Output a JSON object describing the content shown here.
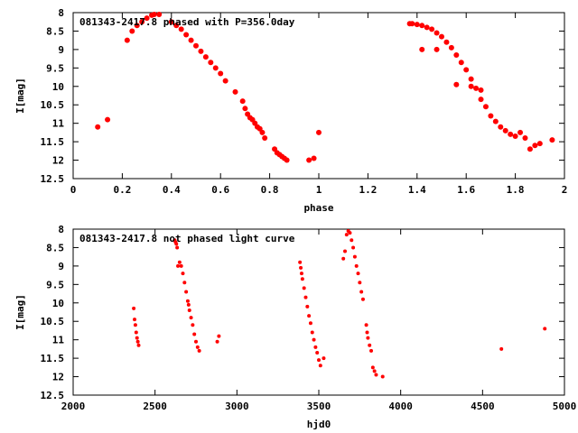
{
  "chart_data": [
    {
      "type": "scatter",
      "title": "081343-2417.8 phased with P=356.0day",
      "xlabel": "phase",
      "ylabel": "I[mag]",
      "xlim": [
        0,
        2
      ],
      "ylim": [
        12.5,
        8
      ],
      "y_inverted": true,
      "xticks": [
        "0",
        "0.2",
        "0.4",
        "0.6",
        "0.8",
        "1",
        "1.2",
        "1.4",
        "1.6",
        "1.8",
        "2"
      ],
      "yticks": [
        "8",
        "8.5",
        "9",
        "9.5",
        "10",
        "10.5",
        "11",
        "11.5",
        "12",
        "12.5"
      ],
      "marker": "filled-circle",
      "color": "#ff0000",
      "grid": false,
      "legend": "none",
      "series": [
        {
          "points": [
            [
              0.1,
              11.1
            ],
            [
              0.14,
              10.9
            ],
            [
              0.22,
              8.75
            ],
            [
              0.24,
              8.5
            ],
            [
              0.26,
              8.35
            ],
            [
              0.28,
              8.25
            ],
            [
              0.3,
              8.15
            ],
            [
              0.32,
              8.07
            ],
            [
              0.33,
              8.05
            ],
            [
              0.35,
              8.05
            ],
            [
              0.4,
              8.25
            ],
            [
              0.42,
              8.35
            ],
            [
              0.44,
              8.45
            ],
            [
              0.46,
              8.6
            ],
            [
              0.48,
              8.75
            ],
            [
              0.5,
              8.9
            ],
            [
              0.52,
              9.05
            ],
            [
              0.54,
              9.2
            ],
            [
              0.56,
              9.35
            ],
            [
              0.58,
              9.5
            ],
            [
              0.6,
              9.65
            ],
            [
              0.62,
              9.85
            ],
            [
              0.66,
              10.15
            ],
            [
              0.69,
              10.4
            ],
            [
              0.7,
              10.6
            ],
            [
              0.71,
              10.75
            ],
            [
              0.72,
              10.85
            ],
            [
              0.73,
              10.9
            ],
            [
              0.74,
              11.0
            ],
            [
              0.75,
              11.1
            ],
            [
              0.76,
              11.15
            ],
            [
              0.77,
              11.25
            ],
            [
              0.78,
              11.4
            ],
            [
              0.82,
              11.7
            ],
            [
              0.83,
              11.8
            ],
            [
              0.84,
              11.85
            ],
            [
              0.85,
              11.9
            ],
            [
              0.86,
              11.95
            ],
            [
              0.87,
              12.0
            ],
            [
              0.96,
              12.0
            ],
            [
              0.98,
              11.95
            ],
            [
              1.0,
              11.25
            ],
            [
              1.37,
              8.3
            ],
            [
              1.38,
              8.3
            ],
            [
              1.4,
              8.32
            ],
            [
              1.42,
              8.35
            ],
            [
              1.44,
              8.4
            ],
            [
              1.46,
              8.45
            ],
            [
              1.48,
              8.55
            ],
            [
              1.5,
              8.65
            ],
            [
              1.52,
              8.8
            ],
            [
              1.54,
              8.95
            ],
            [
              1.56,
              9.15
            ],
            [
              1.58,
              9.35
            ],
            [
              1.6,
              9.55
            ],
            [
              1.62,
              9.8
            ],
            [
              1.64,
              10.05
            ],
            [
              1.66,
              10.35
            ],
            [
              1.68,
              10.55
            ],
            [
              1.7,
              10.8
            ],
            [
              1.72,
              10.95
            ],
            [
              1.74,
              11.1
            ],
            [
              1.76,
              11.2
            ],
            [
              1.78,
              11.3
            ],
            [
              1.8,
              11.35
            ],
            [
              1.42,
              9.0
            ],
            [
              1.48,
              9.0
            ],
            [
              1.56,
              9.95
            ],
            [
              1.62,
              10.0
            ],
            [
              1.66,
              10.1
            ],
            [
              1.82,
              11.25
            ],
            [
              1.84,
              11.4
            ],
            [
              1.86,
              11.7
            ],
            [
              1.88,
              11.6
            ],
            [
              1.9,
              11.55
            ],
            [
              1.95,
              11.45
            ]
          ]
        }
      ]
    },
    {
      "type": "scatter",
      "title": "081343-2417.8 not phased light curve",
      "xlabel": "hjd0",
      "ylabel": "I[mag]",
      "xlim": [
        2000,
        5000
      ],
      "ylim": [
        12.5,
        8
      ],
      "y_inverted": true,
      "xticks": [
        "2000",
        "2500",
        "3000",
        "3500",
        "4000",
        "4500",
        "5000"
      ],
      "yticks": [
        "8",
        "8.5",
        "9",
        "9.5",
        "10",
        "10.5",
        "11",
        "11.5",
        "12",
        "12.5"
      ],
      "marker": "filled-circle",
      "color": "#ff0000",
      "grid": false,
      "legend": "none",
      "series": [
        {
          "points": [
            [
              2370,
              10.15
            ],
            [
              2375,
              10.45
            ],
            [
              2380,
              10.6
            ],
            [
              2385,
              10.8
            ],
            [
              2390,
              10.95
            ],
            [
              2395,
              11.05
            ],
            [
              2400,
              11.15
            ],
            [
              2620,
              8.3
            ],
            [
              2625,
              8.35
            ],
            [
              2630,
              8.4
            ],
            [
              2635,
              8.5
            ],
            [
              2640,
              9.0
            ],
            [
              2650,
              8.9
            ],
            [
              2660,
              9.0
            ],
            [
              2670,
              9.2
            ],
            [
              2680,
              9.45
            ],
            [
              2690,
              9.7
            ],
            [
              2700,
              9.95
            ],
            [
              2705,
              10.05
            ],
            [
              2710,
              10.2
            ],
            [
              2720,
              10.4
            ],
            [
              2730,
              10.6
            ],
            [
              2740,
              10.85
            ],
            [
              2750,
              11.05
            ],
            [
              2760,
              11.2
            ],
            [
              2770,
              11.3
            ],
            [
              2880,
              11.05
            ],
            [
              2890,
              10.9
            ],
            [
              3385,
              8.9
            ],
            [
              3390,
              9.05
            ],
            [
              3395,
              9.2
            ],
            [
              3400,
              9.35
            ],
            [
              3410,
              9.6
            ],
            [
              3420,
              9.85
            ],
            [
              3430,
              10.1
            ],
            [
              3440,
              10.35
            ],
            [
              3450,
              10.55
            ],
            [
              3460,
              10.8
            ],
            [
              3470,
              11.0
            ],
            [
              3480,
              11.2
            ],
            [
              3490,
              11.35
            ],
            [
              3500,
              11.55
            ],
            [
              3510,
              11.7
            ],
            [
              3530,
              11.5
            ],
            [
              3650,
              8.8
            ],
            [
              3660,
              8.6
            ],
            [
              3670,
              8.15
            ],
            [
              3680,
              8.05
            ],
            [
              3690,
              8.1
            ],
            [
              3700,
              8.3
            ],
            [
              3710,
              8.5
            ],
            [
              3720,
              8.75
            ],
            [
              3730,
              9.0
            ],
            [
              3740,
              9.2
            ],
            [
              3750,
              9.45
            ],
            [
              3760,
              9.7
            ],
            [
              3770,
              9.9
            ],
            [
              3790,
              10.6
            ],
            [
              3795,
              10.8
            ],
            [
              3800,
              10.95
            ],
            [
              3810,
              11.15
            ],
            [
              3820,
              11.3
            ],
            [
              3830,
              11.75
            ],
            [
              3840,
              11.85
            ],
            [
              3850,
              11.95
            ],
            [
              3890,
              12.0
            ],
            [
              4615,
              11.25
            ],
            [
              4880,
              10.7
            ]
          ]
        }
      ]
    }
  ]
}
